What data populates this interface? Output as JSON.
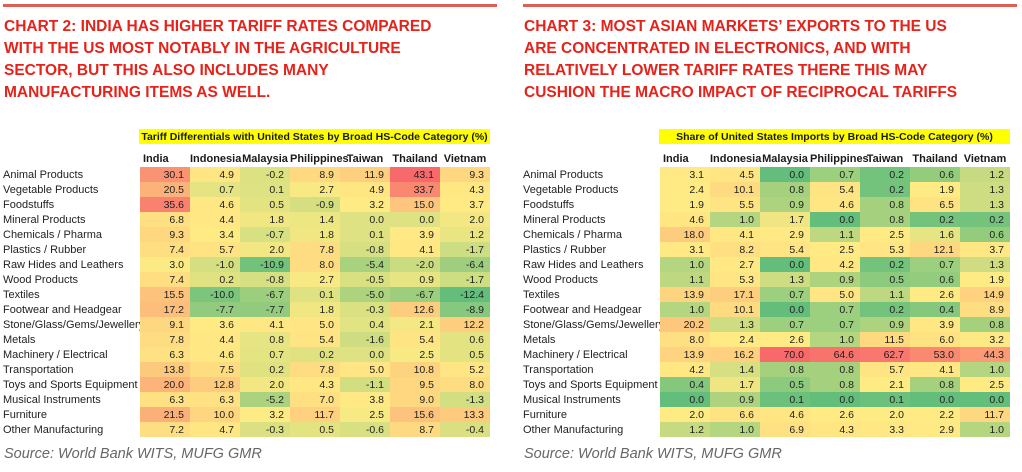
{
  "page": {
    "headings": [
      [
        "CHART 2: INDIA HAS HIGHER TARIFF RATES COMPARED",
        "WITH THE US MOST NOTABLY IN THE AGRICULTURE",
        "SECTOR, BUT THIS ALSO INCLUDES MANY",
        "MANUFACTURING ITEMS AS WELL."
      ],
      [
        "CHART 3: MOST ASIAN MARKETS’ EXPORTS TO THE US",
        "ARE CONCENTRATED IN ELECTRONICS, AND WITH",
        "RELATIVELY LOWER TARIFF RATES THERE THIS MAY",
        "CUSHION THE MACRO IMPACT OF RECIPROCAL TARIFFS"
      ]
    ],
    "sources": [
      "Source: World Bank WITS, MUFG GMR",
      "Source: World Bank WITS, MUFG GMR"
    ]
  },
  "chart_data": [
    {
      "type": "heatmap",
      "title": "Tariff Differentials with United States by Broad HS-Code Category (%)",
      "columns": [
        "India",
        "Indonesia",
        "Malaysia",
        "Philippines",
        "Taiwan",
        "Thailand",
        "Vietnam"
      ],
      "rows": [
        "Animal Products",
        "Vegetable Products",
        "Foodstuffs",
        "Mineral Products",
        "Chemicals / Pharma",
        "Plastics / Rubber",
        "Raw Hides and Leathers",
        "Wood Products",
        "Textiles",
        "Footwear and Headgear",
        "Stone/Glass/Gems/Jewellery",
        "Metals",
        "Machinery / Electrical",
        "Transportation",
        "Toys and Sports Equipment",
        "Musical Instruments",
        "Furniture",
        "Other Manufacturing"
      ],
      "values": [
        [
          30.1,
          4.9,
          -0.2,
          8.9,
          11.9,
          43.1,
          9.3
        ],
        [
          20.5,
          0.7,
          0.1,
          2.7,
          4.9,
          33.7,
          4.3
        ],
        [
          35.6,
          4.6,
          0.5,
          -0.9,
          3.2,
          15.0,
          3.7
        ],
        [
          6.8,
          4.4,
          1.8,
          1.4,
          0.0,
          0.0,
          2.0
        ],
        [
          9.3,
          3.4,
          -0.7,
          1.8,
          0.1,
          3.9,
          1.2
        ],
        [
          7.4,
          5.7,
          2.0,
          7.8,
          -0.8,
          4.1,
          -1.7
        ],
        [
          3.0,
          -1.0,
          -10.9,
          8.0,
          -5.4,
          -2.0,
          -6.4
        ],
        [
          7.4,
          0.2,
          -0.8,
          2.7,
          -0.5,
          0.9,
          -1.7
        ],
        [
          15.5,
          -10.0,
          -6.7,
          0.1,
          -5.0,
          -6.7,
          -12.4
        ],
        [
          17.2,
          -7.7,
          -7.7,
          1.8,
          -0.3,
          12.6,
          -8.9
        ],
        [
          9.1,
          3.6,
          4.1,
          5.0,
          0.4,
          2.1,
          12.2
        ],
        [
          7.8,
          4.4,
          0.8,
          5.4,
          -1.6,
          5.4,
          0.6
        ],
        [
          6.3,
          4.6,
          0.7,
          0.2,
          0.0,
          2.5,
          0.5
        ],
        [
          13.8,
          7.5,
          0.2,
          7.8,
          5.0,
          10.8,
          5.2
        ],
        [
          20.0,
          12.8,
          2.0,
          4.3,
          -1.1,
          9.5,
          8.0
        ],
        [
          6.3,
          6.3,
          -5.2,
          7.0,
          3.8,
          9.0,
          -1.3
        ],
        [
          21.5,
          10.0,
          3.2,
          11.7,
          2.5,
          15.6,
          13.3
        ],
        [
          7.2,
          4.7,
          -0.3,
          0.5,
          -0.6,
          8.7,
          -0.4
        ]
      ],
      "color_scale": {
        "min_color": "#63be7b",
        "mid_color": "#ffeb84",
        "max_color": "#f8696b",
        "midpoint": "percentile50"
      }
    },
    {
      "type": "heatmap",
      "title": "Share of United States Imports by Broad HS-Code Category (%)",
      "columns": [
        "India",
        "Indonesia",
        "Malaysia",
        "Philippines",
        "Taiwan",
        "Thailand",
        "Vietnam"
      ],
      "rows": [
        "Animal Products",
        "Vegetable Products",
        "Foodstuffs",
        "Mineral Products",
        "Chemicals / Pharma",
        "Plastics / Rubber",
        "Raw Hides and Leathers",
        "Wood Products",
        "Textiles",
        "Footwear and Headgear",
        "Stone/Glass/Gems/Jewellery",
        "Metals",
        "Machinery / Electrical",
        "Transportation",
        "Toys and Sports Equipment",
        "Musical Instruments",
        "Furniture",
        "Other Manufacturing"
      ],
      "values": [
        [
          3.1,
          4.5,
          0.0,
          0.7,
          0.2,
          0.6,
          1.2
        ],
        [
          2.4,
          10.1,
          0.8,
          5.4,
          0.2,
          1.9,
          1.3
        ],
        [
          1.9,
          5.5,
          0.9,
          4.6,
          0.8,
          6.5,
          1.3
        ],
        [
          4.6,
          1.0,
          1.7,
          0.0,
          0.8,
          0.2,
          0.2
        ],
        [
          18.0,
          4.1,
          2.9,
          1.1,
          2.5,
          1.6,
          0.6
        ],
        [
          3.1,
          8.2,
          5.4,
          2.5,
          5.3,
          12.1,
          3.7
        ],
        [
          1.0,
          2.7,
          0.0,
          4.2,
          0.2,
          0.7,
          1.3
        ],
        [
          1.1,
          5.3,
          1.3,
          0.9,
          0.5,
          0.6,
          1.9
        ],
        [
          13.9,
          17.1,
          0.7,
          5.0,
          1.1,
          2.6,
          14.9
        ],
        [
          1.0,
          10.1,
          0.0,
          0.7,
          0.2,
          0.4,
          8.9
        ],
        [
          20.2,
          1.3,
          0.7,
          0.7,
          0.9,
          3.9,
          0.8
        ],
        [
          8.0,
          2.4,
          2.6,
          1.0,
          11.5,
          6.0,
          3.2
        ],
        [
          13.9,
          16.2,
          70.0,
          64.6,
          62.7,
          53.0,
          44.3
        ],
        [
          4.2,
          1.4,
          0.8,
          0.8,
          5.7,
          4.1,
          1.0
        ],
        [
          0.4,
          1.7,
          0.5,
          0.8,
          2.1,
          0.8,
          2.5
        ],
        [
          0.0,
          0.9,
          0.1,
          0.0,
          0.1,
          0.0,
          0.0
        ],
        [
          2.0,
          6.6,
          4.6,
          2.6,
          2.0,
          2.2,
          11.7
        ],
        [
          1.2,
          1.0,
          6.9,
          4.3,
          3.3,
          2.9,
          1.0
        ]
      ],
      "color_scale": {
        "min_color": "#63be7b",
        "mid_color": "#ffeb84",
        "max_color": "#f8696b",
        "midpoint": "percentile50"
      }
    }
  ],
  "colors": {
    "heading_red": "#e5231b",
    "rule_red": "#dd6057",
    "highlight_yellow": "#ffff00",
    "scale_green": "#63be7b",
    "scale_yellow": "#ffeb84",
    "scale_red": "#f8696b",
    "text_dark": "#1a1a1a",
    "source_gray": "#666666"
  }
}
